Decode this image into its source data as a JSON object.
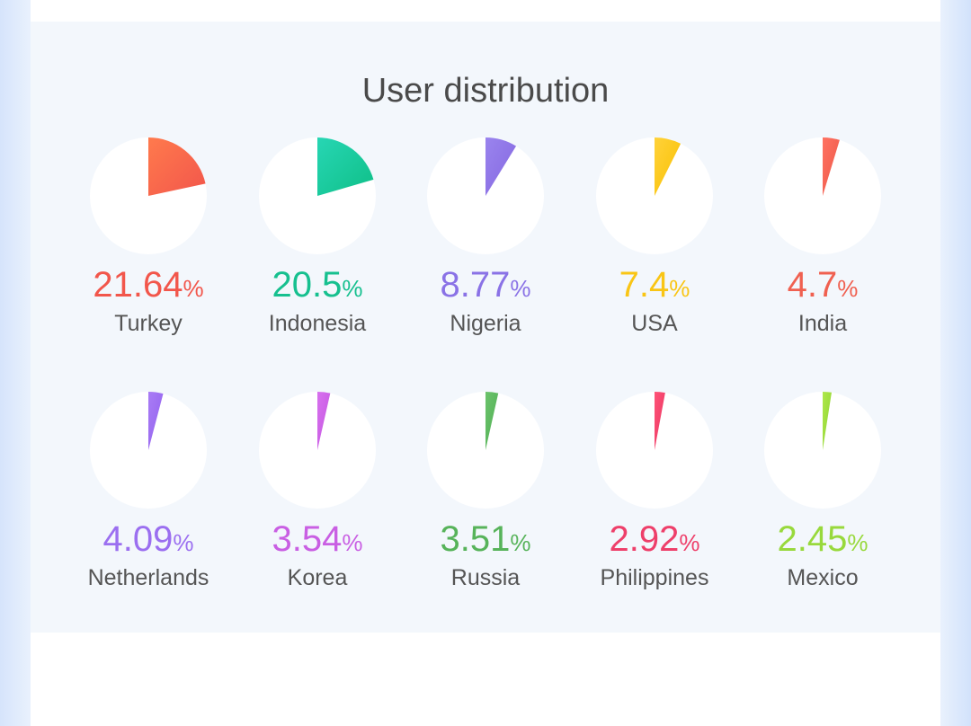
{
  "header": {
    "title": "User distribution"
  },
  "chart_data": {
    "type": "pie",
    "title": "User distribution",
    "unit": "%",
    "items": [
      {
        "country": "Turkey",
        "value": "21.64",
        "color": "#f2564b",
        "gradient": [
          "#ff7a4d",
          "#f2564b"
        ]
      },
      {
        "country": "Indonesia",
        "value": "20.5",
        "color": "#16c08f",
        "gradient": [
          "#27d6b4",
          "#0fbf87"
        ]
      },
      {
        "country": "Nigeria",
        "value": "8.77",
        "color": "#8a72e6",
        "gradient": [
          "#9a84ee",
          "#8467e0"
        ]
      },
      {
        "country": "USA",
        "value": "7.4",
        "color": "#f9c515",
        "gradient": [
          "#ffd23a",
          "#f9c000"
        ]
      },
      {
        "country": "India",
        "value": "4.7",
        "color": "#f06050",
        "gradient": [
          "#ff7262",
          "#ec5747"
        ]
      },
      {
        "country": "Netherlands",
        "value": "4.09",
        "color": "#9b6ff0",
        "gradient": [
          "#a97cf5",
          "#9160ee"
        ]
      },
      {
        "country": "Korea",
        "value": "3.54",
        "color": "#c95fe3",
        "gradient": [
          "#d771ee",
          "#c454e0"
        ]
      },
      {
        "country": "Russia",
        "value": "3.51",
        "color": "#57b35a",
        "gradient": [
          "#6cc36c",
          "#4fae52"
        ]
      },
      {
        "country": "Philippines",
        "value": "2.92",
        "color": "#ee3f6a",
        "gradient": [
          "#ff5377",
          "#e83462"
        ]
      },
      {
        "country": "Mexico",
        "value": "2.45",
        "color": "#98d93c",
        "gradient": [
          "#aee84a",
          "#8ed232"
        ]
      }
    ]
  }
}
